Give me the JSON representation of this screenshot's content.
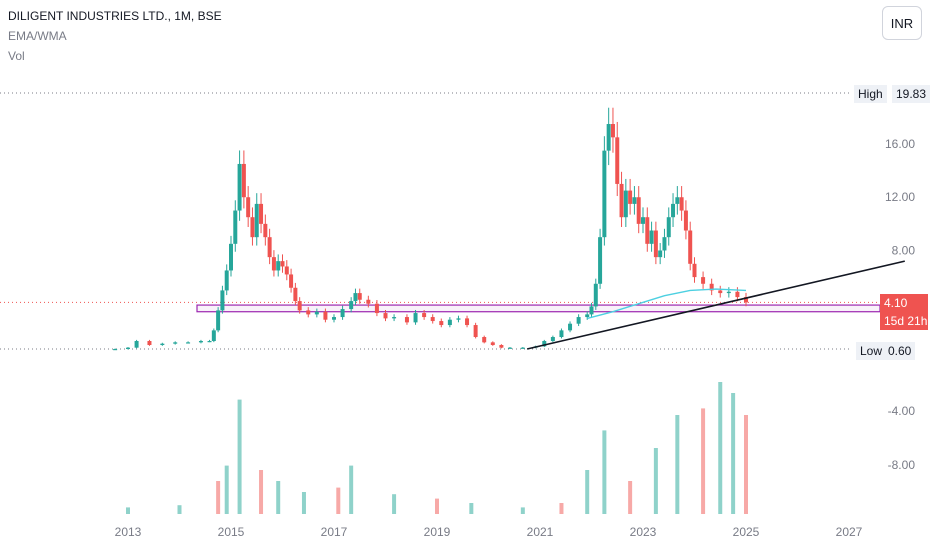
{
  "header": {
    "title": "DILIGENT INDUSTRIES LTD., 1M, BSE",
    "indicator1": "EMA/WMA",
    "indicator2": "Vol",
    "currency": "INR"
  },
  "labels": {
    "high_label": "High",
    "high_value": "19.83",
    "low_label": "Low",
    "low_value": "0.60",
    "last_price": "4.10",
    "countdown": "15d 21h"
  },
  "colors": {
    "up": "#26a69a",
    "down": "#ef5350",
    "vol_up": "#8fd2ca",
    "vol_down": "#f7a9a7",
    "ema": "#4dd0e1",
    "zone": "#9c27b0",
    "trend": "#131722",
    "last_price_bg": "#ef5350"
  },
  "chart_data": {
    "type": "candlestick",
    "interval": "1M",
    "symbol": "DILIGENT INDUSTRIES LTD.",
    "exchange": "BSE",
    "price_axis_ticks": [
      "16.00",
      "12.00",
      "8.00"
    ],
    "volume_axis_ticks": [
      "-4.00",
      "-8.00"
    ],
    "x_axis_ticks": [
      "2013",
      "2015",
      "2017",
      "2019",
      "2021",
      "2023",
      "2025",
      "2027"
    ],
    "ylim": [
      0.6,
      19.83
    ],
    "high": 19.83,
    "low": 0.6,
    "last": 4.1,
    "price_series": [
      [
        "2012-10",
        0.6
      ],
      [
        "2013-01",
        0.7
      ],
      [
        "2013-03",
        1.2
      ],
      [
        "2013-06",
        0.9
      ],
      [
        "2013-09",
        1.0
      ],
      [
        "2013-12",
        1.1
      ],
      [
        "2014-03",
        1.1
      ],
      [
        "2014-06",
        1.2
      ],
      [
        "2014-08",
        1.2
      ],
      [
        "2014-09",
        2.0
      ],
      [
        "2014-10",
        3.5
      ],
      [
        "2014-11",
        5.0
      ],
      [
        "2014-12",
        6.5
      ],
      [
        "2015-01",
        8.5
      ],
      [
        "2015-02",
        11.0
      ],
      [
        "2015-03",
        14.5
      ],
      [
        "2015-04",
        12.0
      ],
      [
        "2015-05",
        10.5
      ],
      [
        "2015-06",
        9.0
      ],
      [
        "2015-07",
        11.5
      ],
      [
        "2015-08",
        10.0
      ],
      [
        "2015-09",
        9.0
      ],
      [
        "2015-10",
        7.5
      ],
      [
        "2015-11",
        6.5
      ],
      [
        "2015-12",
        7.2
      ],
      [
        "2016-01",
        6.8
      ],
      [
        "2016-02",
        6.2
      ],
      [
        "2016-03",
        5.2
      ],
      [
        "2016-04",
        4.2
      ],
      [
        "2016-05",
        3.5
      ],
      [
        "2016-07",
        3.2
      ],
      [
        "2016-09",
        3.4
      ],
      [
        "2016-11",
        2.8
      ],
      [
        "2017-01",
        3.0
      ],
      [
        "2017-03",
        3.6
      ],
      [
        "2017-05",
        4.2
      ],
      [
        "2017-06",
        4.8
      ],
      [
        "2017-07",
        4.3
      ],
      [
        "2017-09",
        4.0
      ],
      [
        "2017-11",
        3.3
      ],
      [
        "2018-01",
        2.9
      ],
      [
        "2018-03",
        3.0
      ],
      [
        "2018-06",
        2.6
      ],
      [
        "2018-08",
        3.3
      ],
      [
        "2018-10",
        3.0
      ],
      [
        "2018-12",
        2.7
      ],
      [
        "2019-02",
        2.4
      ],
      [
        "2019-04",
        2.8
      ],
      [
        "2019-06",
        2.9
      ],
      [
        "2019-08",
        2.4
      ],
      [
        "2019-10",
        1.5
      ],
      [
        "2019-12",
        1.1
      ],
      [
        "2020-02",
        0.9
      ],
      [
        "2020-04",
        0.7
      ],
      [
        "2020-06",
        0.7
      ],
      [
        "2020-09",
        0.7
      ],
      [
        "2020-12",
        0.8
      ],
      [
        "2021-02",
        1.2
      ],
      [
        "2021-04",
        1.5
      ],
      [
        "2021-06",
        2.0
      ],
      [
        "2021-08",
        2.5
      ],
      [
        "2021-10",
        3.0
      ],
      [
        "2021-12",
        3.2
      ],
      [
        "2022-01",
        3.8
      ],
      [
        "2022-02",
        5.5
      ],
      [
        "2022-03",
        9.0
      ],
      [
        "2022-04",
        15.5
      ],
      [
        "2022-05",
        17.5
      ],
      [
        "2022-06",
        16.5
      ],
      [
        "2022-07",
        13.0
      ],
      [
        "2022-08",
        10.5
      ],
      [
        "2022-09",
        12.5
      ],
      [
        "2022-10",
        11.5
      ],
      [
        "2022-11",
        12.0
      ],
      [
        "2022-12",
        10.0
      ],
      [
        "2023-01",
        10.5
      ],
      [
        "2023-02",
        8.5
      ],
      [
        "2023-03",
        9.5
      ],
      [
        "2023-04",
        7.5
      ],
      [
        "2023-05",
        8.0
      ],
      [
        "2023-06",
        9.0
      ],
      [
        "2023-07",
        10.5
      ],
      [
        "2023-08",
        11.5
      ],
      [
        "2023-09",
        12.0
      ],
      [
        "2023-10",
        11.0
      ],
      [
        "2023-11",
        9.5
      ],
      [
        "2023-12",
        7.0
      ],
      [
        "2024-01",
        6.0
      ],
      [
        "2024-03",
        5.5
      ],
      [
        "2024-05",
        5.0
      ],
      [
        "2024-07",
        4.8
      ],
      [
        "2024-09",
        4.9
      ],
      [
        "2024-11",
        4.5
      ],
      [
        "2025-01",
        4.1
      ]
    ],
    "ema_series": [
      [
        "2021-12",
        2.9
      ],
      [
        "2022-06",
        3.4
      ],
      [
        "2022-12",
        4.0
      ],
      [
        "2023-06",
        4.6
      ],
      [
        "2023-12",
        5.0
      ],
      [
        "2024-06",
        5.1
      ],
      [
        "2025-01",
        5.0
      ]
    ],
    "volume_series": [
      [
        "2013",
        0.3
      ],
      [
        "2014",
        0.4
      ],
      [
        "2014-10",
        1.5
      ],
      [
        "2014-12",
        2.2
      ],
      [
        "2015-03",
        5.2
      ],
      [
        "2015-08",
        2.0
      ],
      [
        "2015-12",
        1.5
      ],
      [
        "2016-06",
        1.0
      ],
      [
        "2017-02",
        1.2
      ],
      [
        "2017-05",
        2.2
      ],
      [
        "2018-03",
        0.9
      ],
      [
        "2019-01",
        0.7
      ],
      [
        "2019-09",
        0.5
      ],
      [
        "2020-09",
        0.3
      ],
      [
        "2021-06",
        0.5
      ],
      [
        "2021-12",
        2.0
      ],
      [
        "2022-04",
        3.8
      ],
      [
        "2022-10",
        1.5
      ],
      [
        "2023-04",
        3.0
      ],
      [
        "2023-09",
        4.5
      ],
      [
        "2024-03",
        4.8
      ],
      [
        "2024-07",
        6.0
      ],
      [
        "2024-10",
        5.5
      ],
      [
        "2025-01",
        4.5
      ]
    ],
    "horizontal_zone": [
      3.4,
      3.9
    ],
    "trendline": [
      [
        "2020-10",
        0.6
      ],
      [
        "2025-03",
        4.2
      ],
      [
        "2028-02",
        7.2
      ]
    ],
    "grid": false,
    "legend": "top-left"
  }
}
